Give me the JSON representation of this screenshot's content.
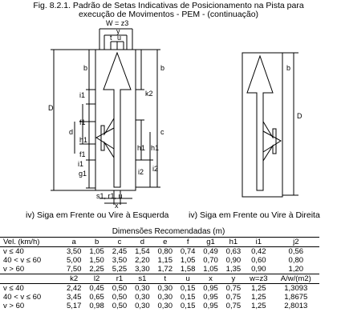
{
  "title": {
    "line1": "Fig. 8.2.1. Padrão de Setas Indicativas de Posicionamento na Pista para",
    "line2": "execução de Movimentos - PEM - (continuação)"
  },
  "left_figure": {
    "labels": {
      "w_eq": "W = z3",
      "y": "y",
      "t": "t",
      "u": "u",
      "b": "b",
      "i1": "i1",
      "k2": "k2",
      "d": "d",
      "f1": "f1",
      "h1": "h1",
      "g1": "g1",
      "i2": "i2",
      "D": "D",
      "s1r1u": "s1, r1, u",
      "x": "x"
    },
    "caption": "iv) Siga em Frente ou Vire à Esquerda"
  },
  "right_figure": {
    "labels": {
      "b": "b",
      "D": "D"
    },
    "caption": "iv) Siga em Frente ou Vire à Direita"
  },
  "table": {
    "caption": "Dimensões Recomendadas (m)",
    "header1": [
      "Vel. (km/h)",
      "a",
      "b",
      "c",
      "d",
      "e",
      "f",
      "g1",
      "h1",
      "i1",
      "j2"
    ],
    "rows1": [
      [
        "v ≤ 40",
        "3,50",
        "1,05",
        "2,45",
        "1,54",
        "0,80",
        "0,74",
        "0,49",
        "0,63",
        "0,42",
        "0,56"
      ],
      [
        "40 < v ≤ 60",
        "5,00",
        "1,50",
        "3,50",
        "2,20",
        "1,15",
        "1,05",
        "0,70",
        "0,90",
        "0,60",
        "0,80"
      ],
      [
        "v > 60",
        "7,50",
        "2,25",
        "5,25",
        "3,30",
        "1,72",
        "1,58",
        "1,05",
        "1,35",
        "0,90",
        "1,20"
      ]
    ],
    "header2": [
      "",
      "k2",
      "l2",
      "r1",
      "s1",
      "t",
      "u",
      "x",
      "y",
      "w=z3",
      "A/w/(m2)"
    ],
    "rows2": [
      [
        "v ≤ 40",
        "2,42",
        "0,45",
        "0,50",
        "0,30",
        "0,30",
        "0,15",
        "0,95",
        "0,75",
        "1,25",
        "1,3093"
      ],
      [
        "40 < v ≤ 60",
        "3,45",
        "0,65",
        "0,50",
        "0,30",
        "0,30",
        "0,15",
        "0,95",
        "0,75",
        "1,25",
        "1,8675"
      ],
      [
        "v > 60",
        "5,17",
        "0,98",
        "0,50",
        "0,30",
        "0,30",
        "0,15",
        "0,95",
        "0,75",
        "1,25",
        "2,8013"
      ]
    ]
  }
}
